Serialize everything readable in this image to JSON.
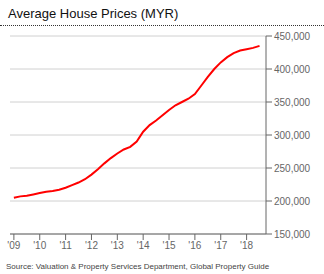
{
  "chart_data": {
    "type": "line",
    "title": "Average House Prices (MYR)",
    "annotations": [
      "Source: Valuation & Property Services Department, Global Property Guide"
    ],
    "color": "#ff0000",
    "grid": true,
    "x": [
      2009.0,
      2009.25,
      2009.5,
      2009.75,
      2010.0,
      2010.25,
      2010.5,
      2010.75,
      2011.0,
      2011.25,
      2011.5,
      2011.75,
      2012.0,
      2012.25,
      2012.5,
      2012.75,
      2013.0,
      2013.25,
      2013.5,
      2013.75,
      2014.0,
      2014.25,
      2014.5,
      2014.75,
      2015.0,
      2015.25,
      2015.5,
      2015.75,
      2016.0,
      2016.25,
      2016.5,
      2016.75,
      2017.0,
      2017.25,
      2017.5,
      2017.75,
      2018.0,
      2018.25,
      2018.5
    ],
    "values": [
      205000,
      207000,
      208000,
      210000,
      212000,
      214000,
      215000,
      217000,
      220000,
      224000,
      228000,
      233000,
      240000,
      248000,
      257000,
      265000,
      272000,
      278000,
      282000,
      290000,
      305000,
      315000,
      322000,
      330000,
      338000,
      345000,
      350000,
      355000,
      362000,
      375000,
      388000,
      400000,
      410000,
      418000,
      424000,
      428000,
      430000,
      432000,
      435000
    ],
    "xlim": [
      2008.85,
      2018.75
    ],
    "xticks": [
      {
        "value": 2009,
        "label": "'09"
      },
      {
        "value": 2010,
        "label": "'10"
      },
      {
        "value": 2011,
        "label": "'11"
      },
      {
        "value": 2012,
        "label": "'12"
      },
      {
        "value": 2013,
        "label": "'13"
      },
      {
        "value": 2014,
        "label": "'14"
      },
      {
        "value": 2015,
        "label": "'15"
      },
      {
        "value": 2016,
        "label": "'16"
      },
      {
        "value": 2017,
        "label": "'17"
      },
      {
        "value": 2018,
        "label": "'18"
      }
    ],
    "ylim": [
      150000,
      450000
    ],
    "yticks": [
      {
        "value": 150000,
        "label": "150,000"
      },
      {
        "value": 200000,
        "label": "200,000"
      },
      {
        "value": 250000,
        "label": "250,000"
      },
      {
        "value": 300000,
        "label": "300,000"
      },
      {
        "value": 350000,
        "label": "350,000"
      },
      {
        "value": 400000,
        "label": "400,000"
      },
      {
        "value": 450000,
        "label": "450,000"
      }
    ]
  }
}
